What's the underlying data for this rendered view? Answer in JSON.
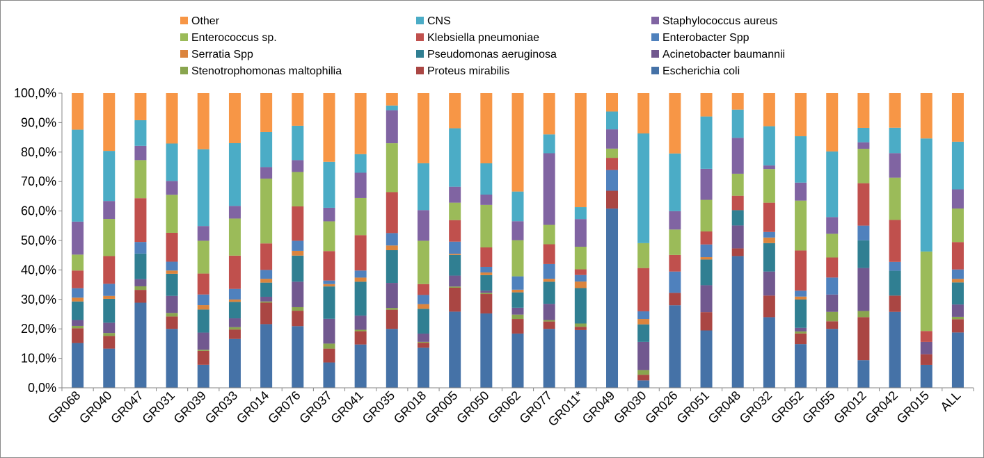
{
  "chart_data": {
    "type": "bar",
    "stacked": true,
    "normalized": true,
    "title": "",
    "xlabel": "",
    "ylabel": "",
    "ylim": [
      0,
      100
    ],
    "yticks": [
      "0,0%",
      "10,0%",
      "20,0%",
      "30,0%",
      "40,0%",
      "50,0%",
      "60,0%",
      "70,0%",
      "80,0%",
      "90,0%",
      "100,0%"
    ],
    "legend_position": "top",
    "grid": false,
    "categories": [
      "GR068",
      "GR040",
      "GR047",
      "GR031",
      "GR039",
      "GR033",
      "GR014",
      "GR076",
      "GR037",
      "GR041",
      "GR035",
      "GR018",
      "GR005",
      "GR050",
      "GR062",
      "GR077",
      "GR011*",
      "GR049",
      "GR030",
      "GR026",
      "GR051",
      "GR048",
      "GR032",
      "GR052",
      "GR055",
      "GR012",
      "GR042",
      "GR015",
      "ALL"
    ],
    "legend_order": [
      "Other",
      "CNS",
      "Staphylococcus aureus",
      "Enterococcus sp.",
      "Klebsiella pneumoniae",
      "Enterobacter Spp",
      "Serratia Spp",
      "Pseudomonas aeruginosa",
      "Acinetobacter baumannii",
      "Stenotrophomonas maltophilia",
      "Proteus mirabilis",
      "Escherichia coli"
    ],
    "series": [
      {
        "name": "Escherichia coli",
        "color": "#4572A7",
        "values": [
          15.2,
          13.3,
          28.6,
          20.0,
          7.8,
          16.6,
          21.6,
          20.8,
          8.6,
          14.7,
          20.0,
          13.6,
          25.8,
          25.2,
          18.3,
          20.0,
          19.4,
          60.4,
          2.5,
          27.9,
          19.4,
          44.8,
          24.1,
          14.8,
          19.4,
          9.4,
          25.7,
          7.8,
          18.8
        ]
      },
      {
        "name": "Proteus mirabilis",
        "color": "#AA4643",
        "values": [
          5.0,
          4.3,
          4.3,
          4.2,
          4.7,
          3.2,
          7.3,
          5.2,
          4.7,
          4.5,
          6.5,
          1.7,
          8.1,
          6.6,
          4.9,
          2.5,
          1.1,
          6.0,
          1.9,
          4.2,
          6.2,
          2.6,
          7.4,
          3.6,
          2.5,
          14.6,
          5.5,
          3.6,
          4.5
        ]
      },
      {
        "name": "Stenotrophomonas maltophilia",
        "color": "#89A54E",
        "values": [
          0.8,
          1.0,
          1.2,
          1.2,
          0.4,
          0.8,
          0.4,
          1.2,
          1.7,
          0.5,
          0.6,
          0.3,
          0.4,
          0.4,
          1.5,
          0.5,
          1.1,
          0,
          1.6,
          0,
          0,
          0,
          0,
          0.7,
          3.1,
          2.1,
          0,
          0,
          0.8
        ]
      },
      {
        "name": "Acinetobacter baumannii",
        "color": "#71588F",
        "values": [
          2.0,
          3.5,
          2.4,
          5.8,
          5.8,
          3.0,
          1.6,
          8.6,
          8.4,
          4.8,
          8.5,
          2.8,
          3.7,
          0.7,
          2.3,
          5.5,
          0,
          0,
          9.5,
          0,
          9.1,
          7.8,
          8.2,
          1.2,
          5.7,
          14.6,
          0,
          4.2,
          4.2
        ]
      },
      {
        "name": "Pseudomonas aeruginosa",
        "color": "#307F92",
        "values": [
          6.3,
          8.1,
          8.6,
          7.5,
          7.8,
          5.6,
          4.8,
          8.8,
          11.0,
          11.5,
          11.1,
          8.4,
          7.0,
          5.3,
          5.2,
          7.5,
          11.9,
          0,
          5.9,
          0,
          8.7,
          5.2,
          9.7,
          9.6,
          0,
          9.4,
          8.4,
          0,
          7.5
        ]
      },
      {
        "name": "Serratia Spp",
        "color": "#DB843D",
        "values": [
          1.3,
          1.0,
          0,
          1.1,
          1.5,
          0.8,
          1.3,
          1.6,
          0.8,
          1.4,
          1.6,
          1.6,
          0.4,
          0.9,
          0.9,
          1.0,
          2.2,
          0,
          1.8,
          0,
          0.8,
          0,
          1.9,
          1.0,
          0,
          0,
          0,
          0,
          1.2
        ]
      },
      {
        "name": "Enterobacter Spp",
        "color": "#4F81BD",
        "values": [
          3.2,
          4.1,
          3.9,
          3.0,
          3.6,
          3.6,
          3.0,
          3.4,
          1.2,
          2.4,
          4.2,
          3.1,
          4.1,
          1.9,
          4.5,
          5.0,
          2.2,
          7.0,
          2.6,
          7.2,
          4.3,
          0,
          1.9,
          2.0,
          5.6,
          5.0,
          3.0,
          0,
          3.2
        ]
      },
      {
        "name": "Klebsiella pneumoniae",
        "color": "#C0504D",
        "values": [
          6.0,
          9.4,
          14.7,
          9.8,
          7.1,
          11.3,
          9.0,
          11.6,
          10.0,
          12.0,
          13.9,
          3.7,
          7.3,
          6.6,
          0,
          6.7,
          1.9,
          4.1,
          14.6,
          5.6,
          4.4,
          4.9,
          10.0,
          13.6,
          6.6,
          14.4,
          14.2,
          3.7,
          9.3
        ]
      },
      {
        "name": "Enterococcus sp.",
        "color": "#9BBB59",
        "values": [
          5.4,
          12.6,
          12.8,
          12.9,
          11.1,
          12.6,
          22.0,
          11.6,
          10.1,
          12.6,
          16.6,
          14.7,
          5.9,
          14.4,
          12.2,
          6.6,
          7.6,
          3.1,
          8.4,
          8.6,
          10.7,
          7.5,
          11.5,
          16.9,
          7.8,
          11.7,
          14.3,
          27.0,
          11.4
        ]
      },
      {
        "name": "Staphylococcus aureus",
        "color": "#8064A2",
        "values": [
          11.2,
          6.1,
          4.8,
          4.7,
          5.0,
          4.3,
          3.9,
          4.0,
          4.6,
          8.6,
          11.2,
          10.4,
          5.4,
          3.5,
          6.4,
          24.3,
          9.3,
          6.5,
          0,
          6.2,
          10.5,
          12.2,
          1.2,
          6.1,
          5.5,
          2.2,
          8.3,
          0,
          6.5
        ]
      },
      {
        "name": "CNS",
        "color": "#4BACC6",
        "values": [
          31.2,
          17.0,
          8.6,
          12.7,
          26.0,
          21.3,
          11.9,
          11.6,
          15.6,
          6.3,
          1.6,
          15.9,
          19.8,
          10.6,
          10.0,
          6.4,
          4.0,
          6.0,
          37.0,
          19.5,
          17.7,
          9.6,
          13.4,
          15.7,
          21.6,
          4.9,
          8.6,
          38.4,
          16.2
        ]
      },
      {
        "name": "Other",
        "color": "#F79646",
        "values": [
          12.4,
          19.6,
          9.1,
          17.1,
          19.0,
          17.0,
          13.2,
          11.0,
          23.3,
          20.7,
          4.2,
          23.8,
          11.9,
          23.8,
          33.2,
          14.0,
          38.3,
          6.2,
          13.6,
          20.4,
          7.9,
          5.6,
          11.3,
          14.6,
          19.2,
          11.8,
          11.7,
          15.4,
          16.5
        ]
      }
    ]
  }
}
